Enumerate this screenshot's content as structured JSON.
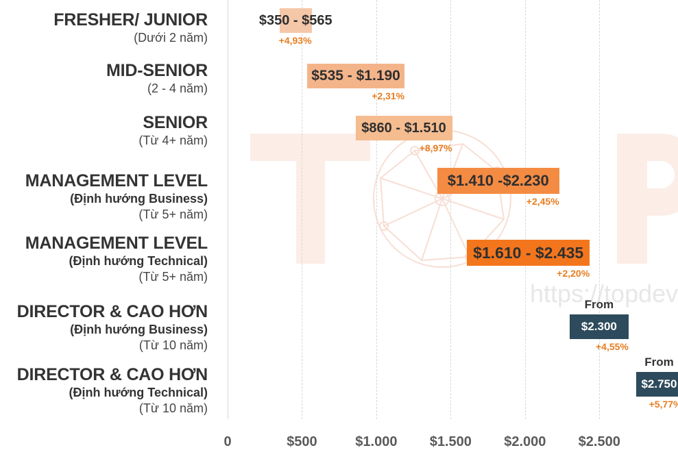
{
  "watermark": {
    "text": "TOPI",
    "url": "https://topdev"
  },
  "chart_data": {
    "type": "bar",
    "orientation": "horizontal",
    "xlim": [
      0,
      2900
    ],
    "x_ticks": [
      0,
      500,
      1000,
      1500,
      2000,
      2500
    ],
    "x_tick_labels": [
      "0",
      "$500",
      "$1.000",
      "$1.500",
      "$2.000",
      "$2.500"
    ],
    "grid": true,
    "rows": [
      {
        "title": "FRESHER/ JUNIOR",
        "sub_bold": "",
        "sub": "(Dưới 2 năm)",
        "min": 350,
        "max": 565,
        "label": "$350 - $565",
        "change": "+4,93%",
        "from": "",
        "color": "#f5c7a9"
      },
      {
        "title": "MID-SENIOR",
        "sub_bold": "",
        "sub": "(2 - 4 năm)",
        "min": 535,
        "max": 1190,
        "label": "$535 - $1.190",
        "change": "+2,31%",
        "from": "",
        "color": "#f4b48a"
      },
      {
        "title": "SENIOR",
        "sub_bold": "",
        "sub": "(Từ 4+ năm)",
        "min": 860,
        "max": 1510,
        "label": "$860 - $1.510",
        "change": "+8,97%",
        "from": "",
        "color": "#f5bc8f"
      },
      {
        "title": "MANAGEMENT LEVEL",
        "sub_bold": "(Định hướng Business)",
        "sub": "(Từ 5+ năm)",
        "min": 1410,
        "max": 2230,
        "label": "$1.410 -$2.230",
        "change": "+2,45%",
        "from": "",
        "color": "#f48b43"
      },
      {
        "title": "MANAGEMENT LEVEL",
        "sub_bold": "(Định hướng Technical)",
        "sub": "(Từ 5+ năm)",
        "min": 1610,
        "max": 2435,
        "label": "$1.610 - $2.435",
        "change": "+2,20%",
        "from": "",
        "color": "#f3761d"
      },
      {
        "title": "DIRECTOR & CAO HƠN",
        "sub_bold": "(Định hướng Business)",
        "sub": "(Từ 10 năm)",
        "min": 2300,
        "max": 2700,
        "label": "$2.300",
        "change": "+4,55%",
        "from": "From",
        "color": "#2d4b5c"
      },
      {
        "title": "DIRECTOR & CAO HƠN",
        "sub_bold": "(Định hướng Technical)",
        "sub": "(Từ 10 năm)",
        "min": 2750,
        "max": 3000,
        "label": "$2.750",
        "change": "+5,77%",
        "from": "From",
        "color": "#2d4b5c"
      }
    ]
  }
}
